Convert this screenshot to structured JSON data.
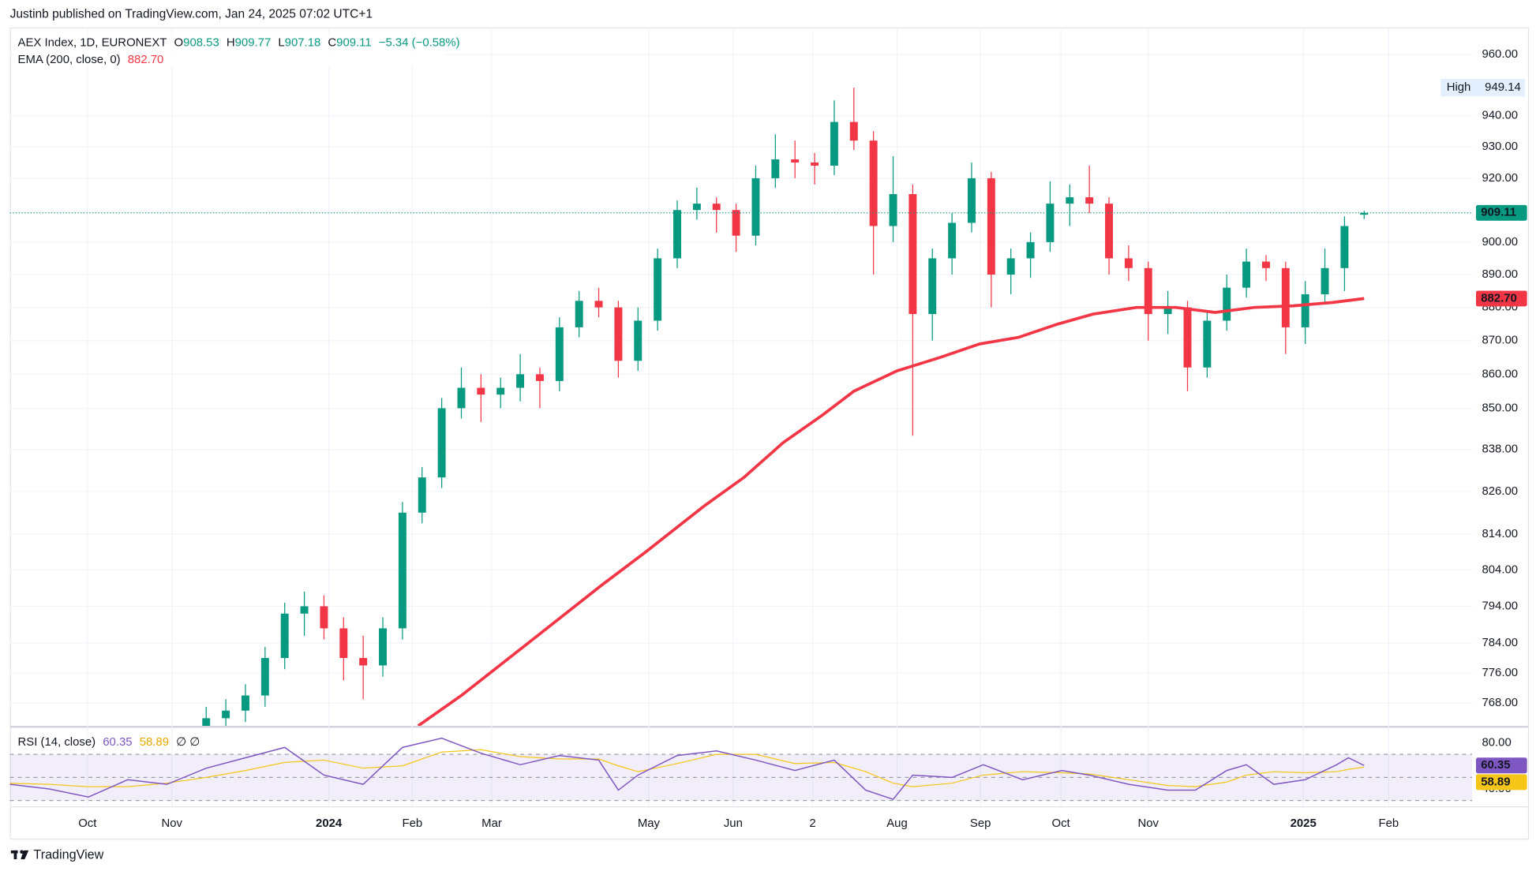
{
  "header": {
    "published": "Justinb published on TradingView.com, Jan 24, 2025 07:02 UTC+1",
    "brand": "TradingView"
  },
  "chart_data": [
    {
      "type": "candlestick",
      "title": "AEX Index, 1D, EURONEXT",
      "ohlc_labels": [
        "O",
        "H",
        "L",
        "C"
      ],
      "change_label": "−5.34 (−0.58%)",
      "log_scale": true,
      "grid": true,
      "ylim": [
        762,
        969
      ],
      "yticks": [
        {
          "value": 960,
          "label": "960.00"
        },
        {
          "value": 940,
          "label": "940.00"
        },
        {
          "value": 930,
          "label": "930.00"
        },
        {
          "value": 920,
          "label": "920.00"
        },
        {
          "value": 900,
          "label": "900.00"
        },
        {
          "value": 890,
          "label": "890.00"
        },
        {
          "value": 880,
          "label": "880.00"
        },
        {
          "value": 870,
          "label": "870.00"
        },
        {
          "value": 860,
          "label": "860.00"
        },
        {
          "value": 850,
          "label": "850.00"
        },
        {
          "value": 838,
          "label": "838.00"
        },
        {
          "value": 826,
          "label": "826.00"
        },
        {
          "value": 814,
          "label": "814.00"
        },
        {
          "value": 804,
          "label": "804.00"
        },
        {
          "value": 794,
          "label": "794.00"
        },
        {
          "value": 784,
          "label": "784.00"
        },
        {
          "value": 776,
          "label": "776.00"
        },
        {
          "value": 768,
          "label": "768.00"
        }
      ],
      "xlim": [
        0,
        372.5
      ],
      "xticks": [
        {
          "value": 19.75,
          "label": "Oct"
        },
        {
          "value": 41.25,
          "label": "Nov"
        },
        {
          "value": 81.25,
          "label": "2024"
        },
        {
          "value": 102.5,
          "label": "Feb"
        },
        {
          "value": 122.75,
          "label": "Mar"
        },
        {
          "value": 162.75,
          "label": "May"
        },
        {
          "value": 184.25,
          "label": "Jun"
        },
        {
          "value": 204.5,
          "label": "2"
        },
        {
          "value": 226,
          "label": "Aug"
        },
        {
          "value": 247.25,
          "label": "Sep"
        },
        {
          "value": 267.75,
          "label": "Oct"
        },
        {
          "value": 290,
          "label": "Nov"
        },
        {
          "value": 329.5,
          "label": "2025"
        },
        {
          "value": 351.25,
          "label": "Feb"
        }
      ],
      "x": [
        50,
        55,
        60,
        65,
        70,
        75,
        80,
        85,
        90,
        95,
        100,
        105,
        110,
        115,
        120,
        125,
        130,
        135,
        140,
        145,
        150,
        155,
        160,
        165,
        170,
        175,
        180,
        185,
        190,
        195,
        200,
        205,
        210,
        215,
        220,
        225,
        230,
        235,
        240,
        245,
        250,
        255,
        260,
        265,
        270,
        275,
        280,
        285,
        290,
        295,
        300,
        305,
        310,
        315,
        320,
        325,
        330,
        335,
        340,
        345
      ],
      "ohlc": [
        [
          762,
          767,
          759,
          764
        ],
        [
          764,
          769,
          761,
          766
        ],
        [
          766,
          773,
          763,
          770
        ],
        [
          770,
          783,
          767,
          780
        ],
        [
          780,
          795,
          777,
          792
        ],
        [
          792,
          798,
          786,
          794
        ],
        [
          794,
          797,
          785,
          788
        ],
        [
          788,
          791,
          774,
          780
        ],
        [
          780,
          786,
          769,
          778
        ],
        [
          778,
          791,
          775,
          788
        ],
        [
          788,
          823,
          785,
          820
        ],
        [
          820,
          833,
          817,
          830
        ],
        [
          830,
          853,
          827,
          850
        ],
        [
          850,
          862,
          847,
          856
        ],
        [
          856,
          860,
          846,
          854
        ],
        [
          854,
          859,
          850,
          856
        ],
        [
          856,
          866,
          852,
          860
        ],
        [
          860,
          862,
          850,
          858
        ],
        [
          858,
          877,
          855,
          874
        ],
        [
          874,
          885,
          871,
          882
        ],
        [
          882,
          886,
          877,
          880
        ],
        [
          880,
          882,
          859,
          864
        ],
        [
          864,
          880,
          861,
          876
        ],
        [
          876,
          898,
          873,
          895
        ],
        [
          895,
          913,
          892,
          910
        ],
        [
          910,
          917,
          907,
          912
        ],
        [
          912,
          914,
          903,
          910
        ],
        [
          910,
          912,
          897,
          902
        ],
        [
          902,
          924,
          899,
          920
        ],
        [
          920,
          934,
          917,
          926
        ],
        [
          926,
          932,
          920,
          925
        ],
        [
          925,
          928,
          918,
          924
        ],
        [
          924,
          945,
          921,
          938
        ],
        [
          938,
          949.14,
          929,
          932
        ],
        [
          932,
          935,
          890,
          905
        ],
        [
          905,
          927,
          900,
          915
        ],
        [
          915,
          918,
          842,
          878
        ],
        [
          878,
          898,
          870,
          895
        ],
        [
          895,
          909,
          890,
          906
        ],
        [
          906,
          925,
          903,
          920
        ],
        [
          920,
          922,
          880,
          890
        ],
        [
          890,
          898,
          884,
          895
        ],
        [
          895,
          903,
          889,
          900
        ],
        [
          900,
          919,
          897,
          912
        ],
        [
          912,
          918,
          905,
          914
        ],
        [
          914,
          924,
          909,
          912
        ],
        [
          912,
          914,
          890,
          895
        ],
        [
          895,
          899,
          888,
          892
        ],
        [
          892,
          894,
          870,
          878
        ],
        [
          878,
          885,
          872,
          880
        ],
        [
          880,
          882,
          855,
          862
        ],
        [
          862,
          879,
          859,
          876
        ],
        [
          876,
          890,
          873,
          886
        ],
        [
          886,
          898,
          883,
          894
        ],
        [
          894,
          896,
          888,
          892
        ],
        [
          892,
          894,
          866,
          874
        ],
        [
          874,
          888,
          869,
          884
        ],
        [
          884,
          898,
          881,
          892
        ],
        [
          892,
          908,
          885,
          905
        ],
        [
          908.53,
          909.77,
          907.18,
          909.11
        ]
      ],
      "up_color": "#089981",
      "down_color": "#f23645",
      "series": [
        {
          "name": "EMA (200, close, 0)",
          "color": "#f23645",
          "last_label": "882.70",
          "x": [
            104,
            115,
            132,
            151,
            162,
            177,
            187,
            197,
            207,
            215,
            226,
            237,
            247,
            257,
            267,
            276,
            287,
            297,
            307,
            317,
            327,
            337,
            345
          ],
          "values": [
            762,
            770,
            784,
            800,
            809,
            822,
            830,
            840,
            848,
            855,
            861,
            865,
            869,
            871,
            875,
            878,
            880,
            880,
            878.5,
            880,
            880.5,
            881.5,
            882.7
          ]
        }
      ],
      "high": {
        "label": "High",
        "value": 949.14
      }
    },
    {
      "type": "line",
      "title": "RSI (14, close)",
      "legend_extra": "∅ ∅",
      "ylim": [
        25,
        93
      ],
      "yticks": [
        {
          "value": 80,
          "label": "80.00"
        },
        {
          "value": 40,
          "label": "40.00"
        }
      ],
      "bands": [
        30,
        70
      ],
      "midline": 50,
      "band_color": "#7e57c2",
      "x": [
        0,
        10,
        20,
        30,
        40,
        50,
        60,
        70,
        80,
        90,
        100,
        110,
        120,
        130,
        140,
        150,
        155,
        160,
        170,
        180,
        190,
        200,
        210,
        218,
        225,
        230,
        240,
        248,
        258,
        268,
        275,
        285,
        295,
        302,
        310,
        315,
        322,
        330,
        338,
        341,
        345
      ],
      "series": [
        {
          "color": "#7e57c2",
          "values": [
            44,
            40,
            33,
            48,
            44,
            58,
            67,
            76,
            52,
            44,
            76,
            84,
            71,
            61,
            69,
            65,
            39,
            52,
            69,
            73,
            65,
            56,
            65,
            39,
            31,
            52,
            50,
            61,
            48,
            56,
            52,
            44,
            39,
            39,
            56,
            61,
            44,
            48,
            61,
            67,
            60.35
          ]
        },
        {
          "color": "#f5c518",
          "values": [
            45,
            44,
            42,
            42,
            45,
            50,
            56,
            63,
            65,
            58,
            60,
            72,
            74,
            68,
            66,
            66,
            60,
            55,
            62,
            70,
            70,
            62,
            63,
            55,
            45,
            42,
            45,
            52,
            55,
            54,
            53,
            48,
            43,
            42,
            46,
            52,
            55,
            54,
            55,
            57,
            58.89
          ]
        }
      ]
    }
  ]
}
